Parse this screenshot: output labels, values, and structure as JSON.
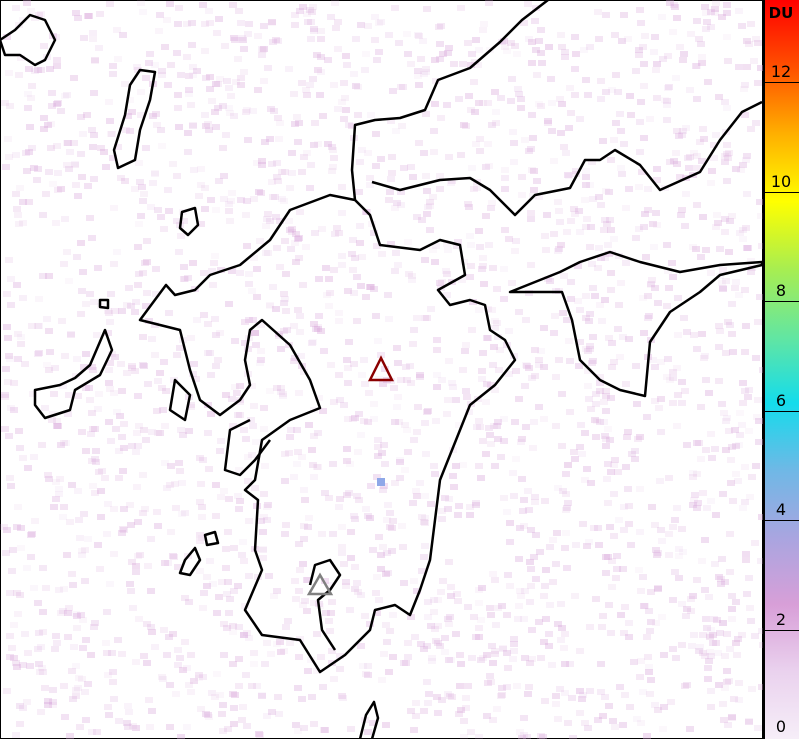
{
  "colorbar": {
    "unit": "DU",
    "min": 0,
    "max": 13.5,
    "ticks": [
      "0",
      "2",
      "4",
      "6",
      "8",
      "10",
      "12"
    ],
    "tick_values": [
      0,
      2,
      4,
      6,
      8,
      10,
      12
    ],
    "colors": [
      "#f6eef8",
      "#ead2ee",
      "#d89fd8",
      "#a9a5e0",
      "#6fb8e6",
      "#14dcec",
      "#64e6a0",
      "#a8ee50",
      "#ffff00",
      "#ffb000",
      "#ff5000",
      "#ff0000"
    ]
  },
  "markers": [
    {
      "name": "volcano-marker-aso",
      "color": "#8b0000"
    },
    {
      "name": "volcano-marker-sakurajima",
      "color": "#808080"
    }
  ],
  "background_color": "#ffffff",
  "pixel_color": "#d8a6da",
  "anomaly_pixel_color": "#8fa8e8"
}
